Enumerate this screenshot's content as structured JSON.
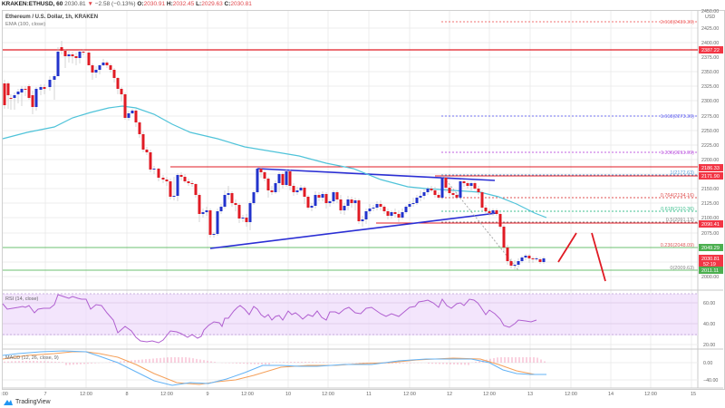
{
  "header": {
    "symbol": "KRAKEN:ETHUSD, 60",
    "last": "2030.81",
    "change": "−2.58 (−0.13%)",
    "o_label": "O:",
    "o": "2030.91",
    "h_label": "H:",
    "h": "2032.45",
    "l_label": "L:",
    "l": "2029.63",
    "c_label": "C:",
    "c": "2030.81"
  },
  "chart": {
    "title": "Ethereum / U.S. Dollar, 1h, KRAKEN",
    "ema_label": "EMA (100, close)",
    "currency": "USD",
    "price_axis": [
      "2450.00",
      "2425.00",
      "2400.00",
      "2375.00",
      "2350.00",
      "2325.00",
      "2300.00",
      "2275.00",
      "2250.00",
      "2225.00",
      "2200.00",
      "2175.00",
      "2150.00",
      "2125.00",
      "2100.00",
      "2075.00",
      "2050.00",
      "2025.00",
      "2000.00"
    ],
    "price_badges": [
      {
        "value": "2387.22",
        "color": "#f23645"
      },
      {
        "value": "2186.33",
        "color": "#f23645"
      },
      {
        "value": "2171.90",
        "color": "#f23645"
      },
      {
        "value": "2090.41",
        "color": "#f23645"
      },
      {
        "value": "2049.29",
        "color": "#4caf50"
      },
      {
        "value": "2030.81",
        "sub": "52:19",
        "color": "#f23645"
      },
      {
        "value": "2011.11",
        "color": "#4caf50"
      }
    ],
    "fib_levels": [
      {
        "label": "2.618(2436.36)",
        "color": "#f07070"
      },
      {
        "label": "1.618(2273.36)",
        "color": "#7070f0"
      },
      {
        "label": "1.236(2211.09)",
        "color": "#c060e0"
      },
      {
        "label": "1(2172.63)",
        "color": "#5a9fd8"
      },
      {
        "label": "0.764(2134.16)",
        "color": "#e05050"
      },
      {
        "label": "0.618(2110.36)",
        "color": "#40c090"
      },
      {
        "label": "0.5(2091.13)",
        "color": "#888888"
      },
      {
        "label": "0.236(2048.09)",
        "color": "#e06060"
      },
      {
        "label": "0(2009.63)",
        "color": "#888888"
      }
    ]
  },
  "rsi": {
    "label": "RSI (14, close)",
    "axis": [
      "60.00",
      "40.00",
      "20.00"
    ]
  },
  "macd": {
    "label": "MACD (12, 26, close, 9)",
    "axis": [
      "0.00",
      "−40.00"
    ]
  },
  "time_axis": [
    ":00",
    "7",
    "12:00",
    "8",
    "12:00",
    "9",
    "12:00",
    "10",
    "12:00",
    "11",
    "12:00",
    "12",
    "12:00",
    "13",
    "12:00",
    "14",
    "12:00",
    "15"
  ],
  "footer": {
    "brand": "TradingView"
  },
  "colors": {
    "up": "#2233cc",
    "down": "#e01b24",
    "ema": "#4fc3d9",
    "rsi": "#b05fd0",
    "macd": "#63b3f6",
    "signal": "#f5a05a",
    "hist": "#f48fb1"
  }
}
